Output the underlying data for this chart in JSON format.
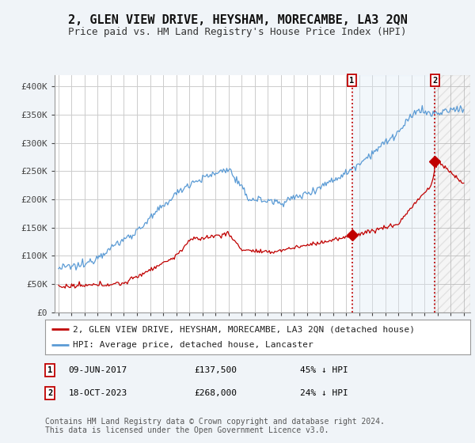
{
  "title": "2, GLEN VIEW DRIVE, HEYSHAM, MORECAMBE, LA3 2QN",
  "subtitle": "Price paid vs. HM Land Registry's House Price Index (HPI)",
  "ylim": [
    0,
    420000
  ],
  "yticks": [
    0,
    50000,
    100000,
    150000,
    200000,
    250000,
    300000,
    350000,
    400000
  ],
  "ytick_labels": [
    "£0",
    "£50K",
    "£100K",
    "£150K",
    "£200K",
    "£250K",
    "£300K",
    "£350K",
    "£400K"
  ],
  "background_color": "#f0f4f8",
  "plot_bg_color": "#ffffff",
  "grid_color": "#cccccc",
  "hpi_color": "#5b9bd5",
  "price_color": "#c00000",
  "shade_color": "#dce9f5",
  "hatch_color": "#cccccc",
  "sale1_year": 2017.45,
  "sale1_price": 137500,
  "sale2_year": 2023.79,
  "sale2_price": 268000,
  "sale1_date": "09-JUN-2017",
  "sale2_date": "18-OCT-2023",
  "sale1_note": "45% ↓ HPI",
  "sale2_note": "24% ↓ HPI",
  "legend_line1": "2, GLEN VIEW DRIVE, HEYSHAM, MORECAMBE, LA3 2QN (detached house)",
  "legend_line2": "HPI: Average price, detached house, Lancaster",
  "footer": "Contains HM Land Registry data © Crown copyright and database right 2024.\nThis data is licensed under the Open Government Licence v3.0.",
  "title_fontsize": 11,
  "subtitle_fontsize": 9,
  "tick_fontsize": 8,
  "legend_fontsize": 8,
  "footer_fontsize": 7,
  "xstart": 1995,
  "xend": 2026
}
